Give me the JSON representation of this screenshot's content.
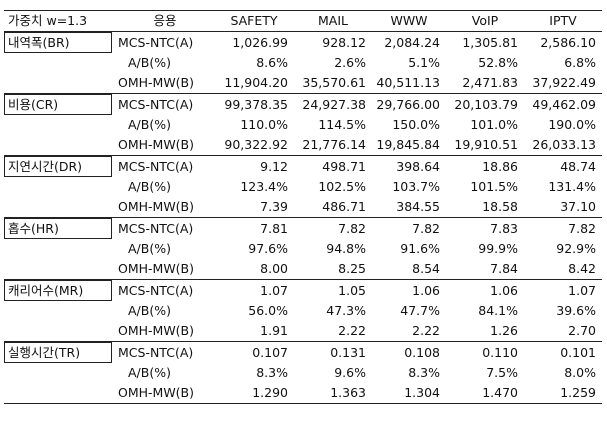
{
  "header": {
    "weight_label": "가중치 w=1.3",
    "col_app": "응용",
    "apps": [
      "SAFETY",
      "MAIL",
      "WWW",
      "VoIP",
      "IPTV"
    ]
  },
  "groups": [
    {
      "name": "내역폭(BR)",
      "rows": [
        {
          "label": "MCS-NTC(A)",
          "values": [
            "1,026.99",
            "928.12",
            "2,084.24",
            "1,305.81",
            "2,586.10"
          ]
        },
        {
          "label": "A/B(%)",
          "values": [
            "8.6%",
            "2.6%",
            "5.1%",
            "52.8%",
            "6.8%"
          ]
        },
        {
          "label": "OMH-MW(B)",
          "values": [
            "11,904.20",
            "35,570.61",
            "40,511.13",
            "2,471.83",
            "37,922.49"
          ]
        }
      ]
    },
    {
      "name": "비용(CR)",
      "rows": [
        {
          "label": "MCS-NTC(A)",
          "values": [
            "99,378.35",
            "24,927.38",
            "29,766.00",
            "20,103.79",
            "49,462.09"
          ]
        },
        {
          "label": "A/B(%)",
          "values": [
            "110.0%",
            "114.5%",
            "150.0%",
            "101.0%",
            "190.0%"
          ]
        },
        {
          "label": "OMH-MW(B)",
          "values": [
            "90,322.92",
            "21,776.14",
            "19,845.84",
            "19,910.51",
            "26,033.13"
          ]
        }
      ]
    },
    {
      "name": "지연시간(DR)",
      "rows": [
        {
          "label": "MCS-NTC(A)",
          "values": [
            "9.12",
            "498.71",
            "398.64",
            "18.86",
            "48.74"
          ]
        },
        {
          "label": "A/B(%)",
          "values": [
            "123.4%",
            "102.5%",
            "103.7%",
            "101.5%",
            "131.4%"
          ]
        },
        {
          "label": "OMH-MW(B)",
          "values": [
            "7.39",
            "486.71",
            "384.55",
            "18.58",
            "37.10"
          ]
        }
      ]
    },
    {
      "name": "홉수(HR)",
      "rows": [
        {
          "label": "MCS-NTC(A)",
          "values": [
            "7.81",
            "7.82",
            "7.82",
            "7.83",
            "7.82"
          ]
        },
        {
          "label": "A/B(%)",
          "values": [
            "97.6%",
            "94.8%",
            "91.6%",
            "99.9%",
            "92.9%"
          ]
        },
        {
          "label": "OMH-MW(B)",
          "values": [
            "8.00",
            "8.25",
            "8.54",
            "7.84",
            "8.42"
          ]
        }
      ]
    },
    {
      "name": "캐리어수(MR)",
      "rows": [
        {
          "label": "MCS-NTC(A)",
          "values": [
            "1.07",
            "1.05",
            "1.06",
            "1.06",
            "1.07"
          ]
        },
        {
          "label": "A/B(%)",
          "values": [
            "56.0%",
            "47.3%",
            "47.7%",
            "84.1%",
            "39.6%"
          ]
        },
        {
          "label": "OMH-MW(B)",
          "values": [
            "1.91",
            "2.22",
            "2.22",
            "1.26",
            "2.70"
          ]
        }
      ]
    },
    {
      "name": "실행시간(TR)",
      "rows": [
        {
          "label": "MCS-NTC(A)",
          "values": [
            "0.107",
            "0.131",
            "0.108",
            "0.110",
            "0.101"
          ]
        },
        {
          "label": "A/B(%)",
          "values": [
            "8.3%",
            "9.6%",
            "8.3%",
            "7.5%",
            "8.0%"
          ]
        },
        {
          "label": "OMH-MW(B)",
          "values": [
            "1.290",
            "1.363",
            "1.304",
            "1.470",
            "1.259"
          ]
        }
      ]
    }
  ]
}
